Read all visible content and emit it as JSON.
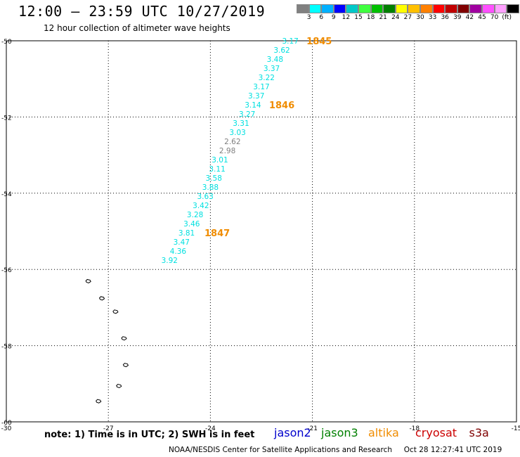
{
  "header": {
    "title": "12:00 – 23:59 UTC 10/27/2019",
    "subtitle": "12 hour collection of altimeter wave heights"
  },
  "scale": {
    "colors": [
      "#808080",
      "#00ffff",
      "#00b0ff",
      "#0000ff",
      "#00c8c8",
      "#40ff40",
      "#00c000",
      "#008000",
      "#ffff00",
      "#ffc000",
      "#ff8000",
      "#ff0000",
      "#c00000",
      "#800000",
      "#a000a0",
      "#ff50ff",
      "#ffa0ff",
      "#000000"
    ],
    "labels": [
      "3",
      "6",
      "9",
      "12",
      "15",
      "18",
      "21",
      "24",
      "27",
      "30",
      "33",
      "36",
      "39",
      "42",
      "45",
      "70",
      "(ft)"
    ]
  },
  "map": {
    "lon_ticks": [
      {
        "label": "-30",
        "lon": -30
      },
      {
        "label": "-27",
        "lon": -27
      },
      {
        "label": "-24",
        "lon": -24
      },
      {
        "label": "-21",
        "lon": -21
      },
      {
        "label": "-18",
        "lon": -18
      },
      {
        "label": "-15",
        "lon": -15
      }
    ],
    "lat_ticks": [
      {
        "label": "-50",
        "lat": -50
      },
      {
        "label": "-52",
        "lat": -52
      },
      {
        "label": "-54",
        "lat": -54
      },
      {
        "label": "-56",
        "lat": -56
      },
      {
        "label": "-58",
        "lat": -58
      },
      {
        "label": "-60",
        "lat": -60
      }
    ],
    "wave_color": "#00e0e0",
    "gray_color": "#808080",
    "time_color": "#f08c00",
    "wave_heights": [
      {
        "label": "3.17",
        "lat": -50.0,
        "lon": -21.65,
        "color": "cyan"
      },
      {
        "label": "3.62",
        "lat": -50.24,
        "lon": -21.9,
        "color": "cyan"
      },
      {
        "label": "3.48",
        "lat": -50.48,
        "lon": -22.1,
        "color": "cyan"
      },
      {
        "label": "3.37",
        "lat": -50.72,
        "lon": -22.2,
        "color": "cyan"
      },
      {
        "label": "3.22",
        "lat": -50.96,
        "lon": -22.35,
        "color": "cyan"
      },
      {
        "label": "3.17",
        "lat": -51.2,
        "lon": -22.5,
        "color": "cyan"
      },
      {
        "label": "3.37",
        "lat": -51.44,
        "lon": -22.65,
        "color": "cyan"
      },
      {
        "label": "3.14",
        "lat": -51.68,
        "lon": -22.75,
        "color": "cyan"
      },
      {
        "label": "3.27",
        "lat": -51.92,
        "lon": -22.92,
        "color": "cyan"
      },
      {
        "label": "3.31",
        "lat": -52.16,
        "lon": -23.1,
        "color": "cyan"
      },
      {
        "label": "3.03",
        "lat": -52.4,
        "lon": -23.2,
        "color": "cyan"
      },
      {
        "label": "2.62",
        "lat": -52.64,
        "lon": -23.35,
        "color": "gray"
      },
      {
        "label": "2.98",
        "lat": -52.88,
        "lon": -23.5,
        "color": "gray"
      },
      {
        "label": "3.01",
        "lat": -53.12,
        "lon": -23.72,
        "color": "cyan"
      },
      {
        "label": "3.11",
        "lat": -53.36,
        "lon": -23.8,
        "color": "cyan"
      },
      {
        "label": "3.58",
        "lat": -53.6,
        "lon": -23.9,
        "color": "cyan"
      },
      {
        "label": "3.88",
        "lat": -53.84,
        "lon": -24.0,
        "color": "cyan"
      },
      {
        "label": "3.63",
        "lat": -54.08,
        "lon": -24.15,
        "color": "cyan"
      },
      {
        "label": "3.42",
        "lat": -54.32,
        "lon": -24.28,
        "color": "cyan"
      },
      {
        "label": "3.28",
        "lat": -54.56,
        "lon": -24.45,
        "color": "cyan"
      },
      {
        "label": "3.46",
        "lat": -54.8,
        "lon": -24.55,
        "color": "cyan"
      },
      {
        "label": "3.81",
        "lat": -55.04,
        "lon": -24.7,
        "color": "cyan"
      },
      {
        "label": "3.47",
        "lat": -55.28,
        "lon": -24.85,
        "color": "cyan"
      },
      {
        "label": "4.36",
        "lat": -55.52,
        "lon": -24.95,
        "color": "cyan"
      },
      {
        "label": "3.92",
        "lat": -55.76,
        "lon": -25.2,
        "color": "cyan"
      }
    ],
    "time_labels": [
      {
        "label": "1845",
        "lat": -50.0,
        "lon": -20.8
      },
      {
        "label": "1846",
        "lat": -51.68,
        "lon": -21.9
      },
      {
        "label": "1847",
        "lat": -55.04,
        "lon": -23.8
      }
    ],
    "islands": [
      {
        "lat": -56.3,
        "lon": -27.6
      },
      {
        "lat": -56.75,
        "lon": -27.2
      },
      {
        "lat": -57.1,
        "lon": -26.8
      },
      {
        "lat": -57.8,
        "lon": -26.55
      },
      {
        "lat": -58.5,
        "lon": -26.5
      },
      {
        "lat": -59.05,
        "lon": -26.7
      },
      {
        "lat": -59.45,
        "lon": -27.3
      }
    ]
  },
  "footer": {
    "note": "note: 1) Time is in UTC; 2) SWH is in feet",
    "legend": [
      {
        "label": "jason2",
        "color": "#0000cc"
      },
      {
        "label": "jason3",
        "color": "#008000"
      },
      {
        "label": "altika",
        "color": "#f08c00"
      },
      {
        "label": "cryosat",
        "color": "#cc0000"
      },
      {
        "label": "s3a",
        "color": "#800000"
      }
    ],
    "credit": "NOAA/NESDIS Center for Satellite Applications and Research",
    "timestamp": "Oct 28 12:27:41 UTC 2019"
  }
}
